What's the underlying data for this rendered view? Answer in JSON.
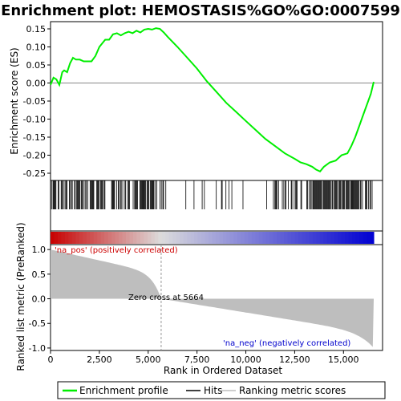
{
  "chart_data": {
    "type": "line",
    "title": "Enrichment plot: HEMOSTASIS%GO%GO:0007599",
    "xlabel": "Rank in Ordered Dataset",
    "ylabel_top": "Enrichment score (ES)",
    "ylabel_bottom": "Ranked list metric (PreRanked)",
    "xlim": [
      0,
      17000
    ],
    "x_ticks": [
      0,
      2500,
      5000,
      7500,
      10000,
      12500,
      15000
    ],
    "x_tick_labels": [
      "0",
      "2,500",
      "5,000",
      "7,500",
      "10,000",
      "12,500",
      "15,000"
    ],
    "es_ylim": [
      -0.27,
      0.17
    ],
    "es_y_ticks": [
      -0.25,
      -0.2,
      -0.15,
      -0.1,
      -0.05,
      0.0,
      0.05,
      0.1,
      0.15
    ],
    "es_y_tick_labels": [
      "-0.25",
      "-0.20",
      "-0.15",
      "-0.10",
      "-0.05",
      "0.00",
      "0.05",
      "0.10",
      "0.15"
    ],
    "metric_ylim": [
      -1.05,
      1.1
    ],
    "metric_y_ticks": [
      -1.0,
      -0.5,
      0.0,
      0.5,
      1.0
    ],
    "metric_y_tick_labels": [
      "-1.0",
      "-0.5",
      "0.0",
      "0.5",
      "1.0"
    ],
    "enrichment_profile": {
      "name": "Enrichment profile",
      "color": "#00ee00",
      "x": [
        0,
        150,
        300,
        450,
        600,
        700,
        850,
        1000,
        1150,
        1300,
        1500,
        1700,
        1900,
        2100,
        2300,
        2500,
        2650,
        2800,
        3000,
        3200,
        3400,
        3600,
        3800,
        4000,
        4200,
        4400,
        4600,
        4800,
        5000,
        5200,
        5400,
        5600,
        5800,
        6000,
        6500,
        7000,
        7500,
        8000,
        8500,
        9000,
        9500,
        10000,
        10500,
        11000,
        11500,
        12000,
        12500,
        12800,
        13100,
        13400,
        13600,
        13800,
        14000,
        14300,
        14600,
        14900,
        15200,
        15400,
        15600,
        15800,
        16000,
        16200,
        16400,
        16550
      ],
      "y": [
        -0.005,
        0.015,
        0.01,
        -0.005,
        0.03,
        0.035,
        0.03,
        0.055,
        0.07,
        0.065,
        0.065,
        0.06,
        0.06,
        0.06,
        0.075,
        0.1,
        0.11,
        0.12,
        0.12,
        0.135,
        0.138,
        0.132,
        0.138,
        0.142,
        0.138,
        0.145,
        0.14,
        0.148,
        0.15,
        0.148,
        0.152,
        0.15,
        0.14,
        0.128,
        0.1,
        0.07,
        0.04,
        0.005,
        -0.025,
        -0.055,
        -0.08,
        -0.105,
        -0.13,
        -0.155,
        -0.175,
        -0.195,
        -0.21,
        -0.22,
        -0.225,
        -0.232,
        -0.24,
        -0.245,
        -0.232,
        -0.22,
        -0.215,
        -0.2,
        -0.195,
        -0.175,
        -0.15,
        -0.12,
        -0.09,
        -0.06,
        -0.03,
        0.003
      ]
    },
    "zero_cross": 5664,
    "annotations": {
      "pos": "'na_pos' (positively correlated)",
      "zero": "Zero cross at 5664",
      "neg": "'na_neg' (negatively correlated)"
    },
    "legend": {
      "placement": "bottom",
      "entries": [
        "Enrichment profile",
        "Hits",
        "Ranking metric scores"
      ]
    },
    "colors": {
      "profile": "#00ee00",
      "hits": "#000000",
      "metric_fill": "#bebebe",
      "pos_band": "#cc0000",
      "neg_band": "#0000cc",
      "zero_line": "#999999"
    }
  }
}
